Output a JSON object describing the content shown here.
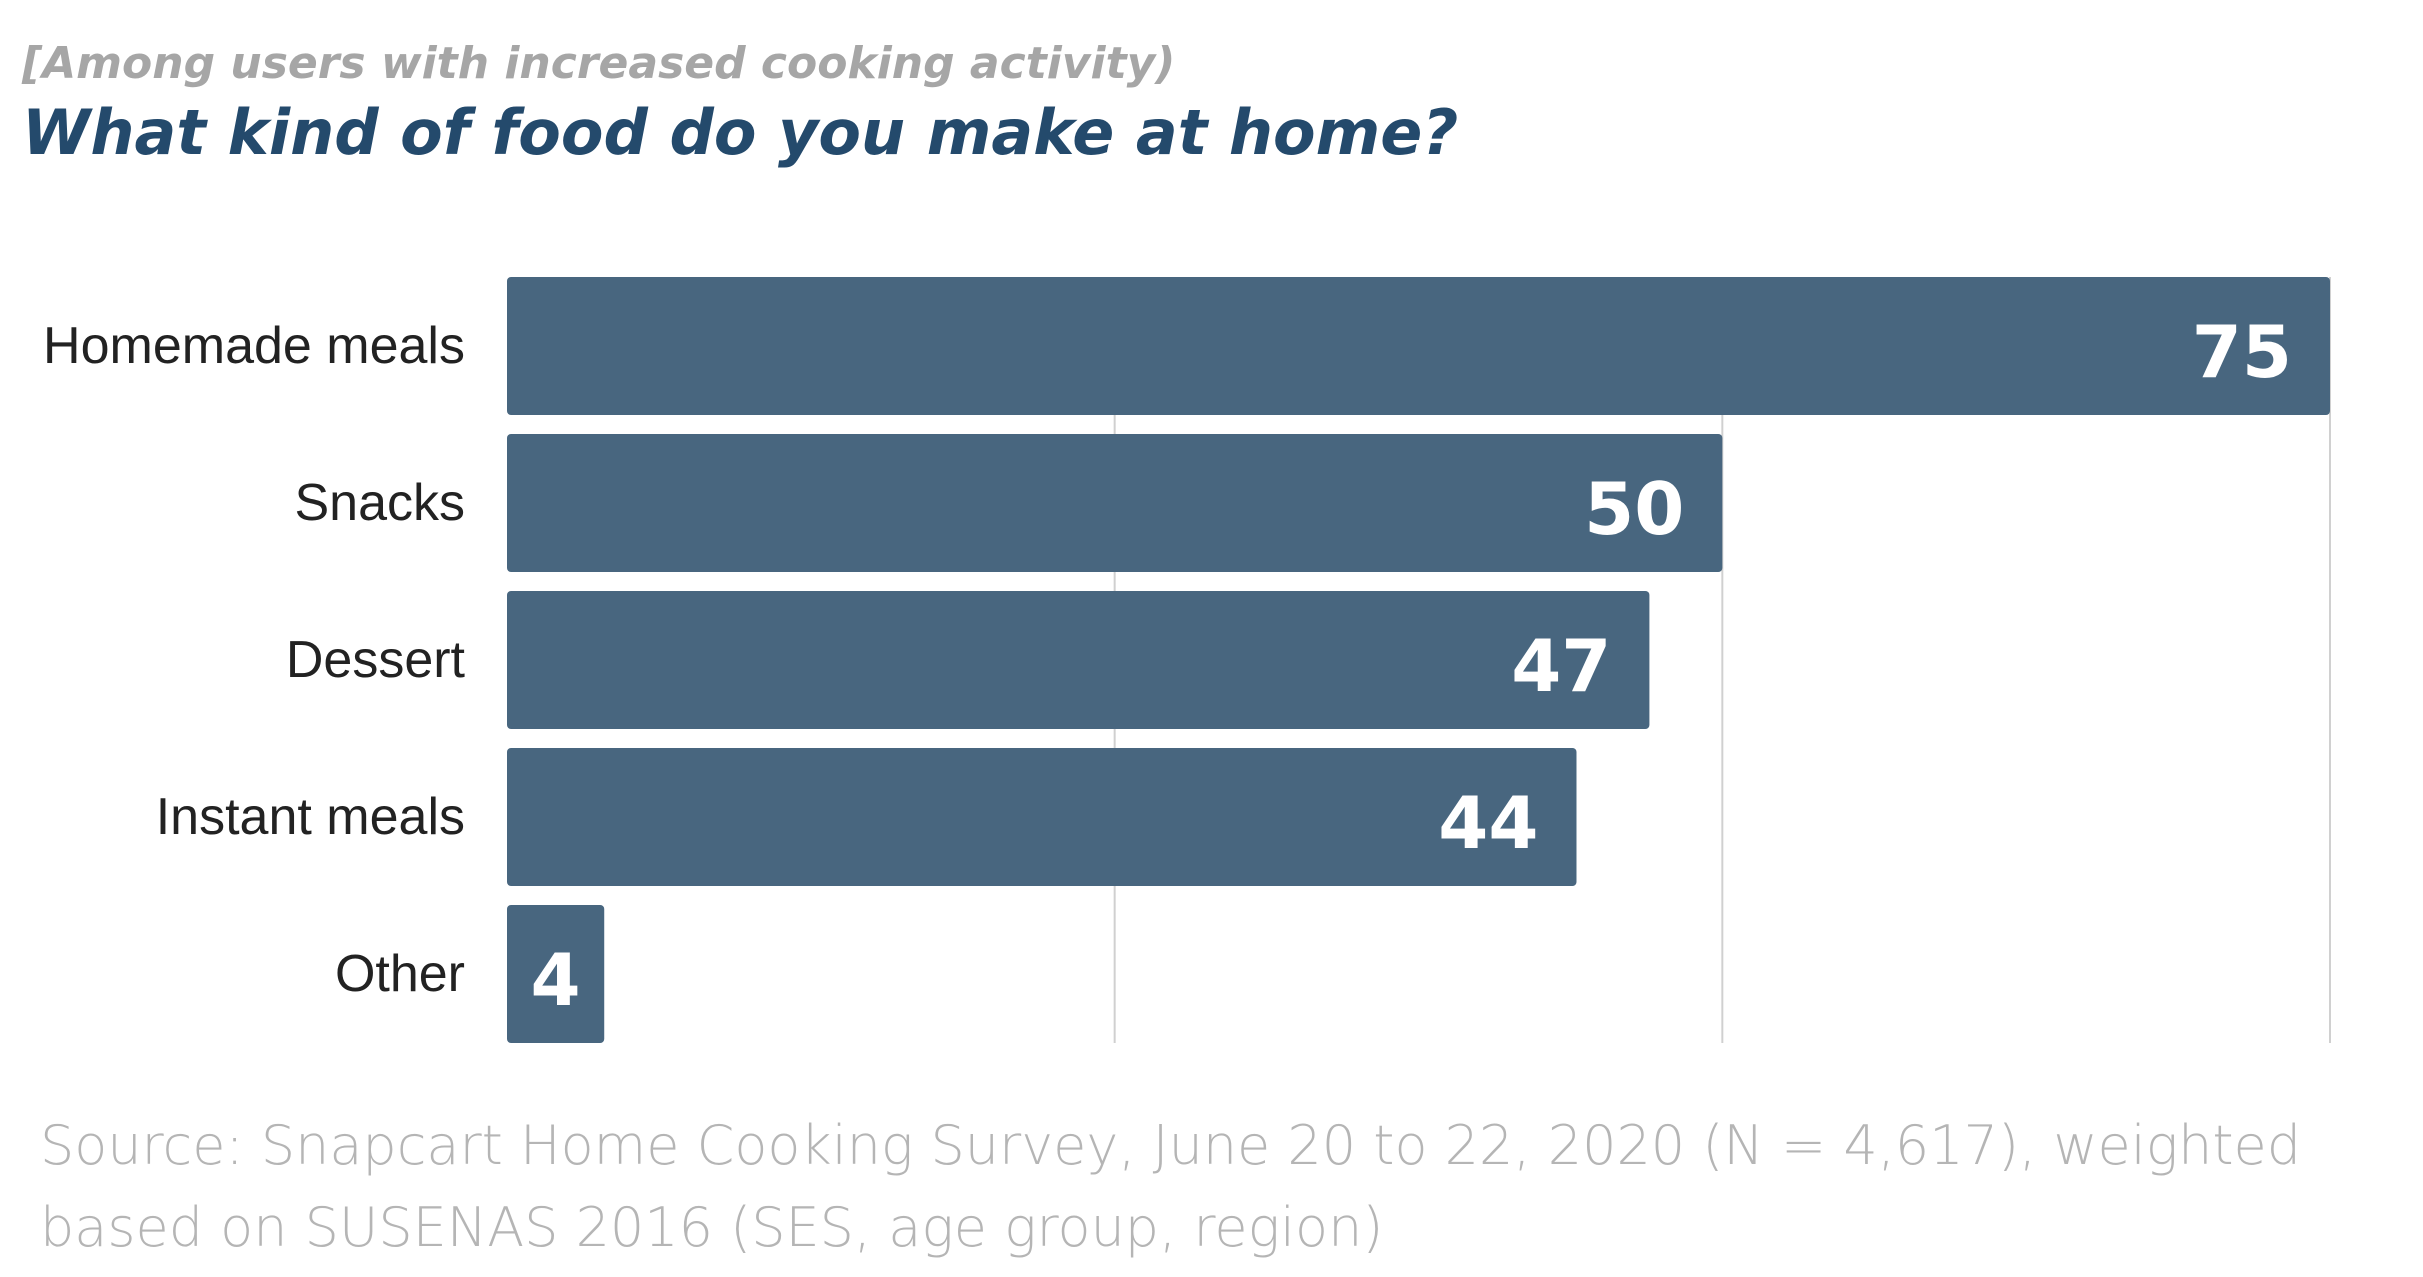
{
  "chart_data": {
    "type": "bar",
    "orientation": "horizontal",
    "subtitle": "[Among users with increased cooking activity)",
    "title": "What kind of food do you make at home?",
    "categories": [
      "Homemade meals",
      "Snacks",
      "Dessert",
      "Instant meals",
      "Other"
    ],
    "values": [
      75,
      50,
      47,
      44,
      4
    ],
    "xlim": [
      0,
      75
    ],
    "gridlines": [
      25,
      50,
      75
    ],
    "grid": true,
    "legend": "none",
    "bar_color": "#48667f",
    "source": "Source: Snapcart Home Cooking Survey, June 20 to 22, 2020 (N = 4,617), weighted based on SUSENAS 2016  (SES, age group, region)"
  }
}
